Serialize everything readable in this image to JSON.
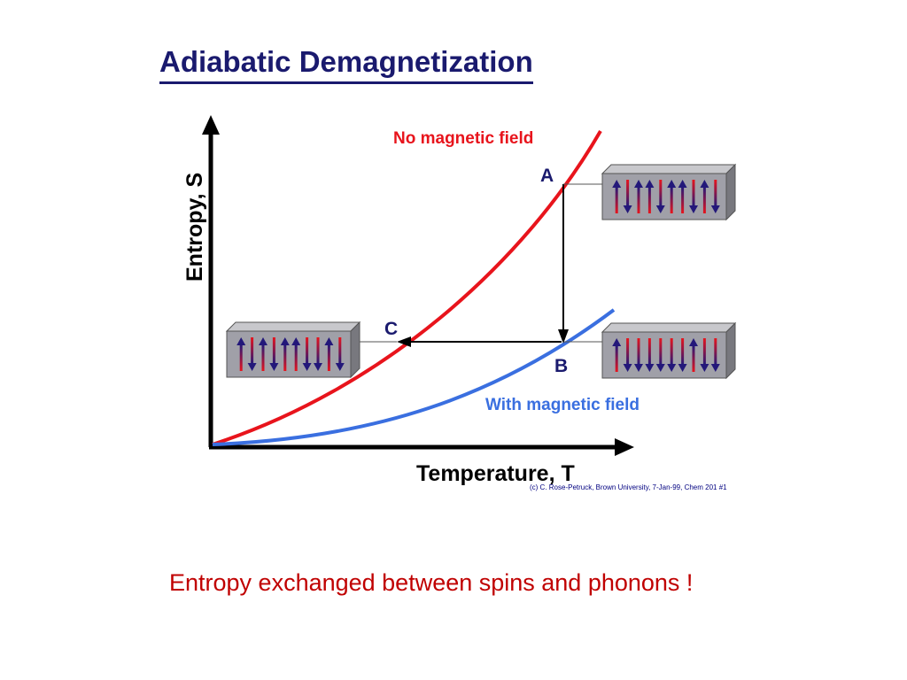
{
  "title": "Adiabatic Demagnetization",
  "diagram": {
    "y_axis_label": "Entropy, S",
    "x_axis_label": "Temperature, T",
    "curve_no_field_label": "No magnetic field",
    "curve_with_field_label": "With magnetic field",
    "point_a": "A",
    "point_b": "B",
    "point_c": "C",
    "colors": {
      "no_field": "#e8141c",
      "with_field": "#3a6fe0",
      "spin_up": "#e8141c",
      "spin_down": "#23187a",
      "box_face": "#a0a0a8"
    },
    "spin_states": {
      "box_a": [
        "up",
        "down",
        "up",
        "up",
        "down",
        "up",
        "up",
        "down",
        "up",
        "down"
      ],
      "box_b": [
        "up",
        "down",
        "down",
        "down",
        "down",
        "down",
        "down",
        "up",
        "down",
        "down"
      ],
      "box_c": [
        "up",
        "down",
        "up",
        "down",
        "up",
        "up",
        "down",
        "down",
        "up",
        "down"
      ]
    }
  },
  "copyright": "(c) C. Rose-Petruck, Brown University, 7-Jan-99, Chem 201 #1",
  "caption": "Entropy exchanged between spins and phonons !"
}
